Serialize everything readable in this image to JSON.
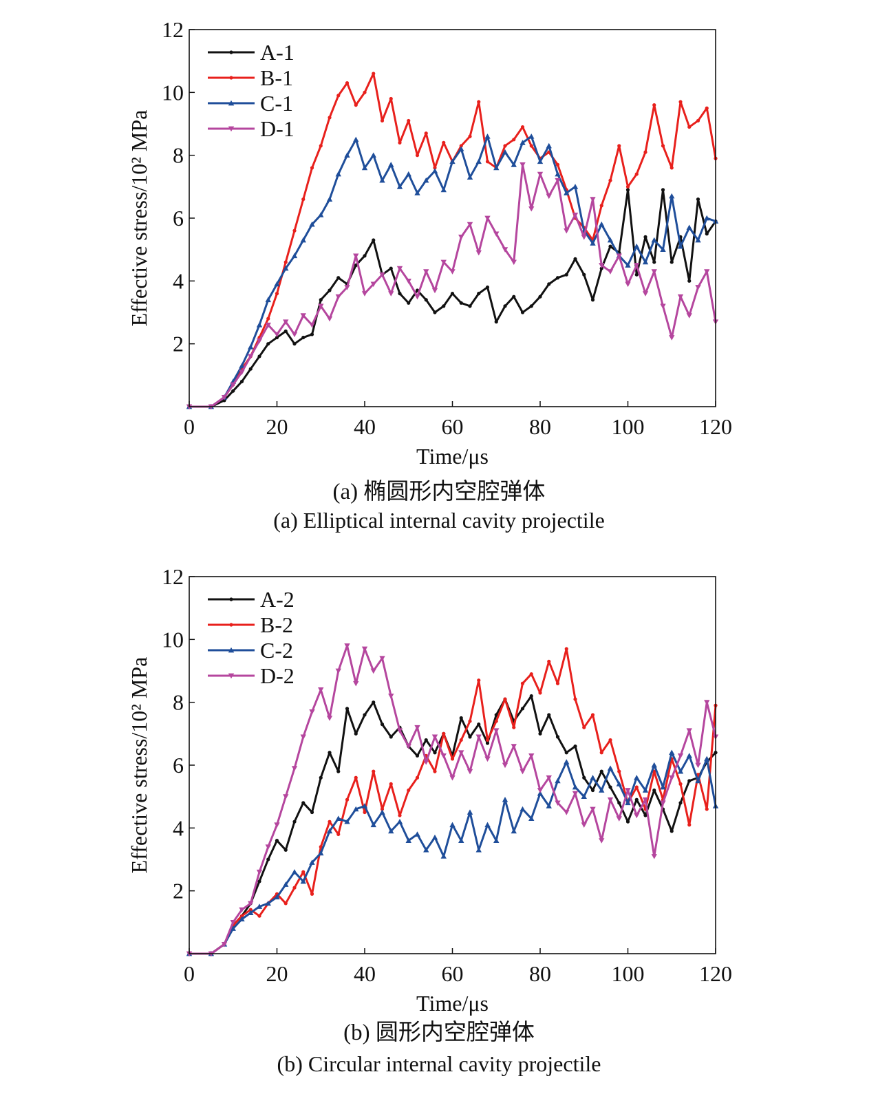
{
  "chart_data": [
    {
      "type": "line",
      "xlabel": "Time/μs",
      "ylabel": "Effective stress/10² MPa",
      "xlim": [
        0,
        120
      ],
      "ylim": [
        0,
        12
      ],
      "xticks": [
        0,
        20,
        40,
        60,
        80,
        100,
        120
      ],
      "yticks": [
        2,
        4,
        6,
        8,
        10,
        12
      ],
      "caption_zh": "(a) 椭圆形内空腔弹体",
      "caption_en": "(a) Elliptical internal cavity projectile",
      "legend_position": "top-left",
      "x": [
        0,
        5,
        8,
        10,
        12,
        14,
        16,
        18,
        20,
        22,
        24,
        26,
        28,
        30,
        32,
        34,
        36,
        38,
        40,
        42,
        44,
        46,
        48,
        50,
        52,
        54,
        56,
        58,
        60,
        62,
        64,
        66,
        68,
        70,
        72,
        74,
        76,
        78,
        80,
        82,
        84,
        86,
        88,
        90,
        92,
        94,
        96,
        98,
        100,
        102,
        104,
        106,
        108,
        110,
        112,
        114,
        116,
        118,
        120
      ],
      "series": [
        {
          "name": "A-1",
          "color": "#111111",
          "marker": "dot",
          "values": [
            0,
            0,
            0.2,
            0.5,
            0.8,
            1.2,
            1.6,
            2.0,
            2.2,
            2.4,
            2.0,
            2.2,
            2.3,
            3.4,
            3.7,
            4.1,
            3.9,
            4.5,
            4.8,
            5.3,
            4.2,
            4.4,
            3.6,
            3.3,
            3.7,
            3.4,
            3.0,
            3.2,
            3.6,
            3.3,
            3.2,
            3.6,
            3.8,
            2.7,
            3.2,
            3.5,
            3.0,
            3.2,
            3.5,
            3.9,
            4.1,
            4.2,
            4.7,
            4.2,
            3.4,
            4.4,
            5.1,
            4.9,
            6.9,
            4.2,
            5.4,
            4.6,
            6.9,
            4.6,
            5.4,
            4.0,
            6.6,
            5.5,
            5.9
          ]
        },
        {
          "name": "B-1",
          "color": "#e8201c",
          "marker": "dot",
          "values": [
            0,
            0,
            0.3,
            0.7,
            1.2,
            1.6,
            2.2,
            2.8,
            3.6,
            4.6,
            5.6,
            6.6,
            7.6,
            8.3,
            9.2,
            9.9,
            10.3,
            9.6,
            10.0,
            10.6,
            9.1,
            9.8,
            8.4,
            9.1,
            8.0,
            8.7,
            7.6,
            8.4,
            7.8,
            8.3,
            8.6,
            9.7,
            7.8,
            7.6,
            8.3,
            8.5,
            8.9,
            8.3,
            7.9,
            8.1,
            7.7,
            6.9,
            6.0,
            5.7,
            5.3,
            6.4,
            7.2,
            8.3,
            7.0,
            7.4,
            8.1,
            9.6,
            8.3,
            7.6,
            9.7,
            8.9,
            9.1,
            9.5,
            7.9
          ]
        },
        {
          "name": "C-1",
          "color": "#1f4e9a",
          "marker": "triangle",
          "values": [
            0,
            0,
            0.3,
            0.8,
            1.3,
            1.9,
            2.6,
            3.4,
            3.9,
            4.4,
            4.8,
            5.3,
            5.8,
            6.1,
            6.6,
            7.4,
            8.0,
            8.5,
            7.6,
            8.0,
            7.2,
            7.7,
            7.0,
            7.4,
            6.8,
            7.2,
            7.5,
            6.9,
            7.8,
            8.2,
            7.3,
            7.8,
            8.6,
            7.6,
            8.1,
            7.7,
            8.4,
            8.6,
            7.8,
            8.3,
            7.4,
            6.8,
            7.0,
            5.6,
            5.2,
            5.8,
            5.3,
            4.8,
            4.5,
            5.1,
            4.6,
            5.3,
            5.0,
            6.7,
            5.1,
            5.7,
            5.3,
            6.0,
            5.9
          ]
        },
        {
          "name": "D-1",
          "color": "#b5469e",
          "marker": "down-triangle",
          "values": [
            0,
            0,
            0.3,
            0.7,
            1.1,
            1.6,
            2.1,
            2.6,
            2.3,
            2.7,
            2.3,
            2.9,
            2.6,
            3.2,
            2.8,
            3.5,
            3.8,
            4.8,
            3.6,
            3.9,
            4.2,
            3.6,
            4.4,
            4.0,
            3.5,
            4.3,
            3.7,
            4.6,
            4.3,
            5.4,
            5.8,
            4.9,
            6.0,
            5.5,
            5.0,
            4.6,
            7.7,
            6.3,
            7.4,
            6.7,
            7.2,
            5.6,
            6.1,
            5.4,
            6.6,
            4.5,
            4.3,
            4.8,
            3.9,
            4.5,
            3.6,
            4.3,
            3.2,
            2.2,
            3.5,
            2.9,
            3.8,
            4.3,
            2.7
          ]
        }
      ]
    },
    {
      "type": "line",
      "xlabel": "Time/μs",
      "ylabel": "Effective stress/10² MPa",
      "xlim": [
        0,
        120
      ],
      "ylim": [
        0,
        12
      ],
      "xticks": [
        0,
        20,
        40,
        60,
        80,
        100,
        120
      ],
      "yticks": [
        2,
        4,
        6,
        8,
        10,
        12
      ],
      "caption_zh": "(b) 圆形内空腔弹体",
      "caption_en": "(b) Circular internal cavity projectile",
      "legend_position": "top-left",
      "x": [
        0,
        5,
        8,
        10,
        12,
        14,
        16,
        18,
        20,
        22,
        24,
        26,
        28,
        30,
        32,
        34,
        36,
        38,
        40,
        42,
        44,
        46,
        48,
        50,
        52,
        54,
        56,
        58,
        60,
        62,
        64,
        66,
        68,
        70,
        72,
        74,
        76,
        78,
        80,
        82,
        84,
        86,
        88,
        90,
        92,
        94,
        96,
        98,
        100,
        102,
        104,
        106,
        108,
        110,
        112,
        114,
        116,
        118,
        120
      ],
      "series": [
        {
          "name": "A-2",
          "color": "#111111",
          "marker": "dot",
          "values": [
            0,
            0,
            0.3,
            0.9,
            1.2,
            1.6,
            2.3,
            3.0,
            3.6,
            3.3,
            4.2,
            4.8,
            4.5,
            5.6,
            6.4,
            5.8,
            7.8,
            7.0,
            7.6,
            8.0,
            7.3,
            6.9,
            7.2,
            6.6,
            6.3,
            6.8,
            6.4,
            7.0,
            6.3,
            7.5,
            6.9,
            7.3,
            6.7,
            7.6,
            8.1,
            7.4,
            7.8,
            8.2,
            7.0,
            7.6,
            6.9,
            6.4,
            6.6,
            5.6,
            5.2,
            5.8,
            5.3,
            4.8,
            4.2,
            4.9,
            4.4,
            5.2,
            4.6,
            3.9,
            4.8,
            5.5,
            5.6,
            6.1,
            6.4
          ]
        },
        {
          "name": "B-2",
          "color": "#e8201c",
          "marker": "dot",
          "values": [
            0,
            0,
            0.3,
            0.9,
            1.2,
            1.4,
            1.2,
            1.6,
            1.9,
            1.6,
            2.1,
            2.6,
            1.9,
            3.4,
            4.2,
            3.8,
            4.9,
            5.6,
            4.5,
            5.8,
            4.6,
            5.4,
            4.4,
            5.2,
            5.6,
            6.3,
            5.8,
            7.0,
            6.2,
            6.8,
            7.4,
            8.7,
            6.8,
            7.4,
            8.1,
            7.2,
            8.6,
            8.9,
            8.3,
            9.3,
            8.6,
            9.7,
            8.1,
            7.2,
            7.6,
            6.4,
            6.8,
            5.8,
            4.8,
            5.3,
            4.6,
            5.8,
            4.9,
            6.2,
            5.4,
            4.1,
            5.7,
            4.6,
            7.9
          ]
        },
        {
          "name": "C-2",
          "color": "#1f4e9a",
          "marker": "triangle",
          "values": [
            0,
            0,
            0.3,
            0.8,
            1.1,
            1.3,
            1.5,
            1.6,
            1.8,
            2.2,
            2.6,
            2.3,
            2.9,
            3.2,
            3.9,
            4.3,
            4.2,
            4.6,
            4.7,
            4.1,
            4.5,
            3.9,
            4.2,
            3.6,
            3.8,
            3.3,
            3.7,
            3.1,
            4.1,
            3.6,
            4.5,
            3.3,
            4.1,
            3.6,
            4.9,
            3.9,
            4.6,
            4.3,
            5.1,
            4.7,
            5.5,
            6.1,
            5.3,
            5.0,
            5.6,
            5.2,
            5.9,
            5.4,
            4.8,
            5.6,
            5.2,
            6.0,
            5.3,
            6.4,
            5.8,
            6.3,
            5.5,
            6.2,
            4.7
          ]
        },
        {
          "name": "D-2",
          "color": "#b5469e",
          "marker": "down-triangle",
          "values": [
            0,
            0,
            0.3,
            1.0,
            1.4,
            1.6,
            2.6,
            3.4,
            4.1,
            5.0,
            5.9,
            6.9,
            7.7,
            8.4,
            7.5,
            9.0,
            9.8,
            8.6,
            9.7,
            9.0,
            9.4,
            8.2,
            7.1,
            6.6,
            7.2,
            6.1,
            6.9,
            6.3,
            5.6,
            6.4,
            5.8,
            6.9,
            6.2,
            7.1,
            6.0,
            6.6,
            5.8,
            6.3,
            5.2,
            5.6,
            4.8,
            4.5,
            5.1,
            4.1,
            4.6,
            3.6,
            4.9,
            4.3,
            5.2,
            4.4,
            4.9,
            3.1,
            4.8,
            5.6,
            6.3,
            7.1,
            6.0,
            8.0,
            6.9
          ]
        }
      ]
    }
  ]
}
